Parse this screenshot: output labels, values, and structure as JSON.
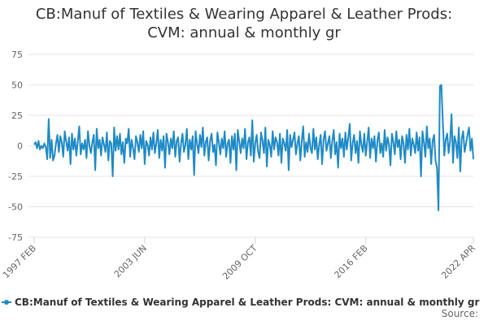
{
  "chart_data": {
    "type": "line",
    "title": "CB:Manuf of Textiles & Wearing Apparel & Leather Prods: CVM: annual & monthly gr",
    "source": "Source:",
    "x": [
      "1997-02",
      "1997-03",
      "1997-04",
      "1997-05",
      "1997-06",
      "1997-07",
      "1997-08",
      "1997-09",
      "1997-10",
      "1997-11",
      "1997-12",
      "1998-01",
      "1998-02",
      "1998-03",
      "1998-04",
      "1998-05",
      "1998-06",
      "1998-07",
      "1998-08",
      "1998-09",
      "1998-10",
      "1998-11",
      "1998-12",
      "1999-01",
      "1999-02",
      "1999-03",
      "1999-04",
      "1999-05",
      "1999-06",
      "1999-07",
      "1999-08",
      "1999-09",
      "1999-10",
      "1999-11",
      "1999-12",
      "2000-01",
      "2000-02",
      "2000-03",
      "2000-04",
      "2000-05",
      "2000-06",
      "2000-07",
      "2000-08",
      "2000-09",
      "2000-10",
      "2000-11",
      "2000-12",
      "2001-01",
      "2001-02",
      "2001-03",
      "2001-04",
      "2001-05",
      "2001-06",
      "2001-07",
      "2001-08",
      "2001-09",
      "2001-10",
      "2001-11",
      "2001-12",
      "2002-01",
      "2002-02",
      "2002-03",
      "2002-04",
      "2002-05",
      "2002-06",
      "2002-07",
      "2002-08",
      "2002-09",
      "2002-10",
      "2002-11",
      "2002-12",
      "2003-01",
      "2003-02",
      "2003-03",
      "2003-04",
      "2003-05",
      "2003-06",
      "2003-07",
      "2003-08",
      "2003-09",
      "2003-10",
      "2003-11",
      "2003-12",
      "2004-01",
      "2004-02",
      "2004-03",
      "2004-04",
      "2004-05",
      "2004-06",
      "2004-07",
      "2004-08",
      "2004-09",
      "2004-10",
      "2004-11",
      "2004-12",
      "2005-01",
      "2005-02",
      "2005-03",
      "2005-04",
      "2005-05",
      "2005-06",
      "2005-07",
      "2005-08",
      "2005-09",
      "2005-10",
      "2005-11",
      "2005-12",
      "2006-01",
      "2006-02",
      "2006-03",
      "2006-04",
      "2006-05",
      "2006-06",
      "2006-07",
      "2006-08",
      "2006-09",
      "2006-10",
      "2006-11",
      "2006-12",
      "2007-01",
      "2007-02",
      "2007-03",
      "2007-04",
      "2007-05",
      "2007-06",
      "2007-07",
      "2007-08",
      "2007-09",
      "2007-10",
      "2007-11",
      "2007-12",
      "2008-01",
      "2008-02",
      "2008-03",
      "2008-04",
      "2008-05",
      "2008-06",
      "2008-07",
      "2008-08",
      "2008-09",
      "2008-10",
      "2008-11",
      "2008-12",
      "2009-01",
      "2009-02",
      "2009-03",
      "2009-04",
      "2009-05",
      "2009-06",
      "2009-07",
      "2009-08",
      "2009-09",
      "2009-10",
      "2009-11",
      "2009-12",
      "2010-01",
      "2010-02",
      "2010-03",
      "2010-04",
      "2010-05",
      "2010-06",
      "2010-07",
      "2010-08",
      "2010-09",
      "2010-10",
      "2010-11",
      "2010-12",
      "2011-01",
      "2011-02",
      "2011-03",
      "2011-04",
      "2011-05",
      "2011-06",
      "2011-07",
      "2011-08",
      "2011-09",
      "2011-10",
      "2011-11",
      "2011-12",
      "2012-01",
      "2012-02",
      "2012-03",
      "2012-04",
      "2012-05",
      "2012-06",
      "2012-07",
      "2012-08",
      "2012-09",
      "2012-10",
      "2012-11",
      "2012-12",
      "2013-01",
      "2013-02",
      "2013-03",
      "2013-04",
      "2013-05",
      "2013-06",
      "2013-07",
      "2013-08",
      "2013-09",
      "2013-10",
      "2013-11",
      "2013-12",
      "2014-01",
      "2014-02",
      "2014-03",
      "2014-04",
      "2014-05",
      "2014-06",
      "2014-07",
      "2014-08",
      "2014-09",
      "2014-10",
      "2014-11",
      "2014-12",
      "2015-01",
      "2015-02",
      "2015-03",
      "2015-04",
      "2015-05",
      "2015-06",
      "2015-07",
      "2015-08",
      "2015-09",
      "2015-10",
      "2015-11",
      "2015-12",
      "2016-01",
      "2016-02",
      "2016-03",
      "2016-04",
      "2016-05",
      "2016-06",
      "2016-07",
      "2016-08",
      "2016-09",
      "2016-10",
      "2016-11",
      "2016-12",
      "2017-01",
      "2017-02",
      "2017-03",
      "2017-04",
      "2017-05",
      "2017-06",
      "2017-07",
      "2017-08",
      "2017-09",
      "2017-10",
      "2017-11",
      "2017-12",
      "2018-01",
      "2018-02",
      "2018-03",
      "2018-04",
      "2018-05",
      "2018-06",
      "2018-07",
      "2018-08",
      "2018-09",
      "2018-10",
      "2018-11",
      "2018-12",
      "2019-01",
      "2019-02",
      "2019-03",
      "2019-04",
      "2019-05",
      "2019-06",
      "2019-07",
      "2019-08",
      "2019-09",
      "2019-10",
      "2019-11",
      "2019-12",
      "2020-01",
      "2020-02",
      "2020-03",
      "2020-04",
      "2020-05",
      "2020-06",
      "2020-07",
      "2020-08",
      "2020-09",
      "2020-10",
      "2020-11",
      "2020-12",
      "2021-01",
      "2021-02",
      "2021-03",
      "2021-04",
      "2021-05",
      "2021-06",
      "2021-07",
      "2021-08",
      "2021-09",
      "2021-10",
      "2021-11",
      "2021-12",
      "2022-01",
      "2022-02",
      "2022-03",
      "2022-04"
    ],
    "series": [
      {
        "name": "CB:Manuf of Textiles & Wearing Apparel & Leather Prods: CVM: annual & monthly gr",
        "color": "#1f8ac6",
        "values": [
          1,
          3,
          -2,
          4,
          -3,
          0,
          -2,
          2,
          -1,
          -11,
          22,
          -10,
          5,
          -12,
          -8,
          2,
          9,
          -5,
          8,
          3,
          -9,
          12,
          4,
          -4,
          7,
          -15,
          10,
          -3,
          6,
          -8,
          4,
          16,
          -7,
          2,
          -3,
          5,
          -10,
          12,
          0,
          -6,
          3,
          9,
          -20,
          14,
          -2,
          5,
          -8,
          7,
          1,
          -5,
          11,
          -12,
          4,
          2,
          -25,
          15,
          -4,
          8,
          -3,
          10,
          -7,
          3,
          -14,
          6,
          2,
          14,
          -9,
          5,
          -2,
          -11,
          8,
          3,
          -5,
          9,
          -2,
          12,
          -15,
          4,
          1,
          -8,
          7,
          -3,
          11,
          -6,
          2,
          13,
          -10,
          5,
          -4,
          8,
          -18,
          10,
          3,
          -7,
          6,
          -2,
          12,
          -9,
          4,
          7,
          -13,
          2,
          10,
          -5,
          1,
          14,
          -11,
          5,
          -3,
          8,
          -24,
          12,
          2,
          -6,
          9,
          -1,
          15,
          -8,
          3,
          7,
          -12,
          4,
          10,
          -5,
          1,
          -16,
          11,
          3,
          -7,
          6,
          -2,
          12,
          -9,
          2,
          5,
          -14,
          8,
          -3,
          10,
          -20,
          13,
          4,
          -6,
          6,
          -2,
          14,
          -11,
          3,
          7,
          -8,
          21,
          -13,
          2,
          9,
          -5,
          -10,
          11,
          4,
          -6,
          15,
          -17,
          5,
          1,
          -9,
          12,
          -3,
          7,
          3,
          -8,
          10,
          -14,
          6,
          2,
          -4,
          13,
          -20,
          9,
          -1,
          5,
          11,
          -7,
          2,
          8,
          -12,
          4,
          16,
          -9,
          3,
          -5,
          10,
          -2,
          -6,
          14,
          -3,
          7,
          -11,
          1,
          9,
          -15,
          5,
          12,
          -4,
          2,
          8,
          -10,
          4,
          13,
          -7,
          3,
          -18,
          10,
          -2,
          6,
          -9,
          11,
          -3,
          7,
          18,
          -12,
          2,
          9,
          -6,
          4,
          -14,
          12,
          1,
          -5,
          10,
          -8,
          3,
          15,
          -10,
          6,
          -2,
          8,
          -13,
          4,
          11,
          -6,
          2,
          -9,
          13,
          -4,
          7,
          1,
          -16,
          10,
          3,
          -7,
          12,
          -1,
          5,
          -11,
          8,
          2,
          -14,
          9,
          -3,
          14,
          -8,
          6,
          1,
          -6,
          11,
          -4,
          7,
          -25,
          12,
          3,
          -9,
          16,
          -2,
          6,
          -15,
          4,
          9,
          -12,
          -18,
          -53,
          49,
          50,
          20,
          -8,
          5,
          10,
          -6,
          4,
          26,
          -14,
          8,
          3,
          -10,
          15,
          -21,
          6,
          12,
          -5,
          2,
          9,
          15,
          -4,
          6,
          -11
        ]
      }
    ],
    "xlim": [
      "1997-02",
      "2022-04"
    ],
    "xticks": [
      {
        "value": "1997-02",
        "label": "1997 FEB"
      },
      {
        "value": "2003-06",
        "label": "2003 JUN"
      },
      {
        "value": "2009-10",
        "label": "2009 OCT"
      },
      {
        "value": "2016-02",
        "label": "2016 FEB"
      },
      {
        "value": "2022-04",
        "label": "2022 APR"
      }
    ],
    "ylim": [
      -75,
      75
    ],
    "yticks": [
      -75,
      -50,
      -25,
      0,
      25,
      50,
      75
    ],
    "grid": true
  }
}
